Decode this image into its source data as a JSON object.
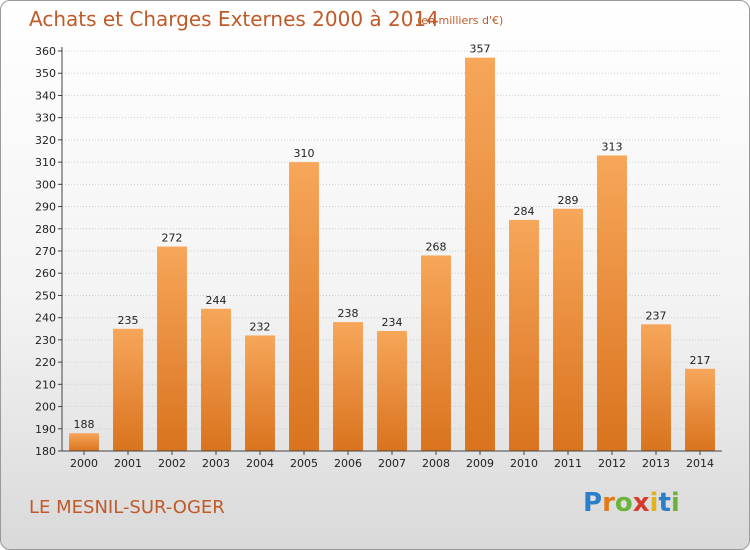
{
  "title": "Achats et Charges Externes 2000 à 2014",
  "subtitle": "(en milliers d'€)",
  "commune": "LE MESNIL-SUR-OGER",
  "logo": {
    "text": "Proxiti",
    "letter_colors": [
      "#2a7fc8",
      "#e27a1c",
      "#6bb43a",
      "#d53a2a",
      "#e2b21c",
      "#2a7fc8",
      "#6bb43a"
    ]
  },
  "colors": {
    "bar_light": "#f7a65a",
    "bar_dark": "#d9731e",
    "axis": "#444444",
    "grid": "#d0d0d0",
    "text": "#222222",
    "title": "#c05a28"
  },
  "chart_data": {
    "type": "bar",
    "categories": [
      "2000",
      "2001",
      "2002",
      "2003",
      "2004",
      "2005",
      "2006",
      "2007",
      "2008",
      "2009",
      "2010",
      "2011",
      "2012",
      "2013",
      "2014"
    ],
    "values": [
      188,
      235,
      272,
      244,
      232,
      310,
      238,
      234,
      268,
      357,
      284,
      289,
      313,
      237,
      217
    ],
    "data_labels": [
      "188",
      "235",
      "272",
      "244",
      "232",
      "310",
      "238",
      "234",
      "268",
      "357",
      "284",
      "289",
      "313",
      "237",
      "217"
    ],
    "ylim": [
      180,
      360
    ],
    "yticks": [
      "180",
      "190",
      "200",
      "210",
      "220",
      "230",
      "240",
      "250",
      "260",
      "270",
      "280",
      "290",
      "300",
      "310",
      "320",
      "330",
      "340",
      "350",
      "360"
    ],
    "grid": true,
    "legend": "none"
  }
}
